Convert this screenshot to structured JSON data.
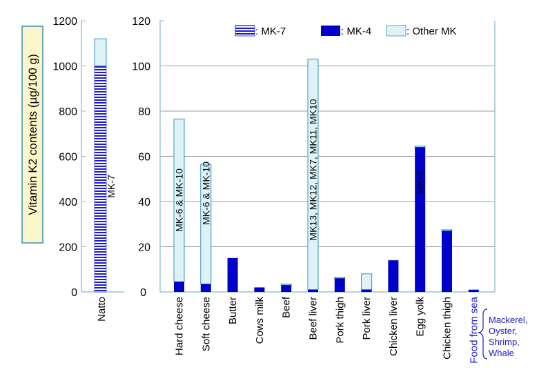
{
  "chart_data": [
    {
      "type": "bar",
      "stacked": true,
      "categories": [
        "Natto"
      ],
      "series": [
        {
          "name": "MK-7",
          "values": [
            1000
          ]
        },
        {
          "name": "Other MK",
          "values": [
            120
          ]
        }
      ],
      "ylabel": "Vitamin K2 contents (µg/100 g)",
      "ylim": [
        0,
        1200
      ],
      "yticks": [
        "0",
        "200",
        "400",
        "600",
        "800",
        "1000",
        "1200"
      ],
      "annotations": [
        {
          "category": "Natto",
          "text": "MK-7"
        }
      ]
    },
    {
      "type": "bar",
      "stacked": true,
      "categories": [
        "Hard cheese",
        "Soft cheese",
        "Butter",
        "Cows milk",
        "Beef",
        "Beef liver",
        "Pork thigh",
        "Pork liver",
        "Chicken liver",
        "Egg yolk",
        "Chicken thigh",
        "Food from sea"
      ],
      "series": [
        {
          "name": "MK-4",
          "values": [
            4.5,
            3.5,
            15,
            2,
            3,
            1,
            6,
            1,
            14,
            64,
            27,
            1
          ]
        },
        {
          "name": "Other MK",
          "values": [
            72,
            53,
            0,
            0,
            0.5,
            102,
            0.5,
            7,
            0,
            0.5,
            0.5,
            0
          ]
        }
      ],
      "ylim": [
        0,
        120
      ],
      "yticks": [
        "0",
        "20",
        "40",
        "60",
        "80",
        "100",
        "120"
      ],
      "legend_position": "top-right",
      "legend": [
        {
          "label": ": MK-7",
          "pattern": "striped-blue"
        },
        {
          "label": ": MK-4",
          "color": "#0000cc"
        },
        {
          "label": ": Other MK",
          "color": "#ddf3f8"
        }
      ],
      "annotations": [
        {
          "category": "Hard cheese",
          "text": "MK-6 & MK-10"
        },
        {
          "category": "Soft cheese",
          "text": "MK-6 & MK-10"
        },
        {
          "category": "Beef liver",
          "text": "MK13, MK12, MK7, MK11, MK10"
        },
        {
          "category": "Egg yolk",
          "text": "MK-4"
        }
      ],
      "note": {
        "category": "Food from sea",
        "lines": [
          "Mackerel,",
          "Oyster,",
          "Shrimp,",
          "Whale"
        ]
      }
    }
  ],
  "colors": {
    "mk4": "#0000cc",
    "other_mk": "#ddf3f8",
    "other_mk_border": "#3a90b8",
    "axis": "#7fb8cf",
    "grid": "#777777",
    "ylabel_bg": "#fdf6c9",
    "food_from_sea_label": "#1a1acc"
  }
}
